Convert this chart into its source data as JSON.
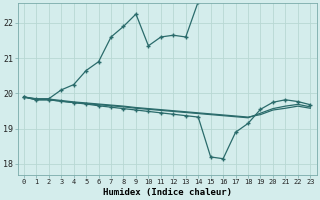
{
  "xlabel": "Humidex (Indice chaleur)",
  "bg_color": "#d4edec",
  "grid_color": "#b8d8d4",
  "line_color": "#2a6b6b",
  "xlim": [
    -0.5,
    23.5
  ],
  "ylim": [
    17.7,
    22.55
  ],
  "yticks": [
    18,
    19,
    20,
    21,
    22
  ],
  "xticks": [
    0,
    1,
    2,
    3,
    4,
    5,
    6,
    7,
    8,
    9,
    10,
    11,
    12,
    13,
    14,
    15,
    16,
    17,
    18,
    19,
    20,
    21,
    22,
    23
  ],
  "line1_x": [
    0,
    1,
    2,
    3,
    4,
    5,
    6,
    7,
    8,
    9,
    10,
    11,
    12,
    13,
    14,
    15
  ],
  "line1_y": [
    19.9,
    19.85,
    19.85,
    20.1,
    20.25,
    20.65,
    20.9,
    21.6,
    21.9,
    22.25,
    21.35,
    21.6,
    21.65,
    21.6,
    22.6,
    22.65
  ],
  "line2_x": [
    0,
    1,
    2,
    3,
    4,
    5,
    6,
    7,
    8,
    9,
    10,
    11,
    12,
    13,
    14,
    15,
    16,
    17,
    18,
    19,
    20,
    21,
    22,
    23
  ],
  "line2_y": [
    19.9,
    19.82,
    19.82,
    19.78,
    19.74,
    19.7,
    19.65,
    19.61,
    19.57,
    19.53,
    19.49,
    19.45,
    19.41,
    19.37,
    19.33,
    18.2,
    18.15,
    18.9,
    19.15,
    19.55,
    19.75,
    19.82,
    19.77,
    19.68
  ],
  "line3_x": [
    0,
    1,
    2,
    3,
    4,
    5,
    6,
    7,
    8,
    9,
    10,
    11,
    12,
    13,
    14,
    15,
    16,
    17,
    18,
    19,
    20,
    21,
    22,
    23
  ],
  "line3_y": [
    19.9,
    19.82,
    19.82,
    19.78,
    19.74,
    19.71,
    19.68,
    19.65,
    19.62,
    19.58,
    19.55,
    19.52,
    19.49,
    19.46,
    19.43,
    19.4,
    19.37,
    19.34,
    19.31,
    19.44,
    19.57,
    19.64,
    19.69,
    19.62
  ],
  "line4_x": [
    0,
    1,
    2,
    3,
    4,
    5,
    6,
    7,
    8,
    9,
    10,
    11,
    12,
    13,
    14,
    15,
    16,
    17,
    18,
    19,
    20,
    21,
    22,
    23
  ],
  "line4_y": [
    19.9,
    19.84,
    19.84,
    19.8,
    19.76,
    19.73,
    19.7,
    19.67,
    19.64,
    19.6,
    19.57,
    19.54,
    19.51,
    19.48,
    19.45,
    19.42,
    19.39,
    19.36,
    19.33,
    19.4,
    19.53,
    19.58,
    19.64,
    19.58
  ]
}
